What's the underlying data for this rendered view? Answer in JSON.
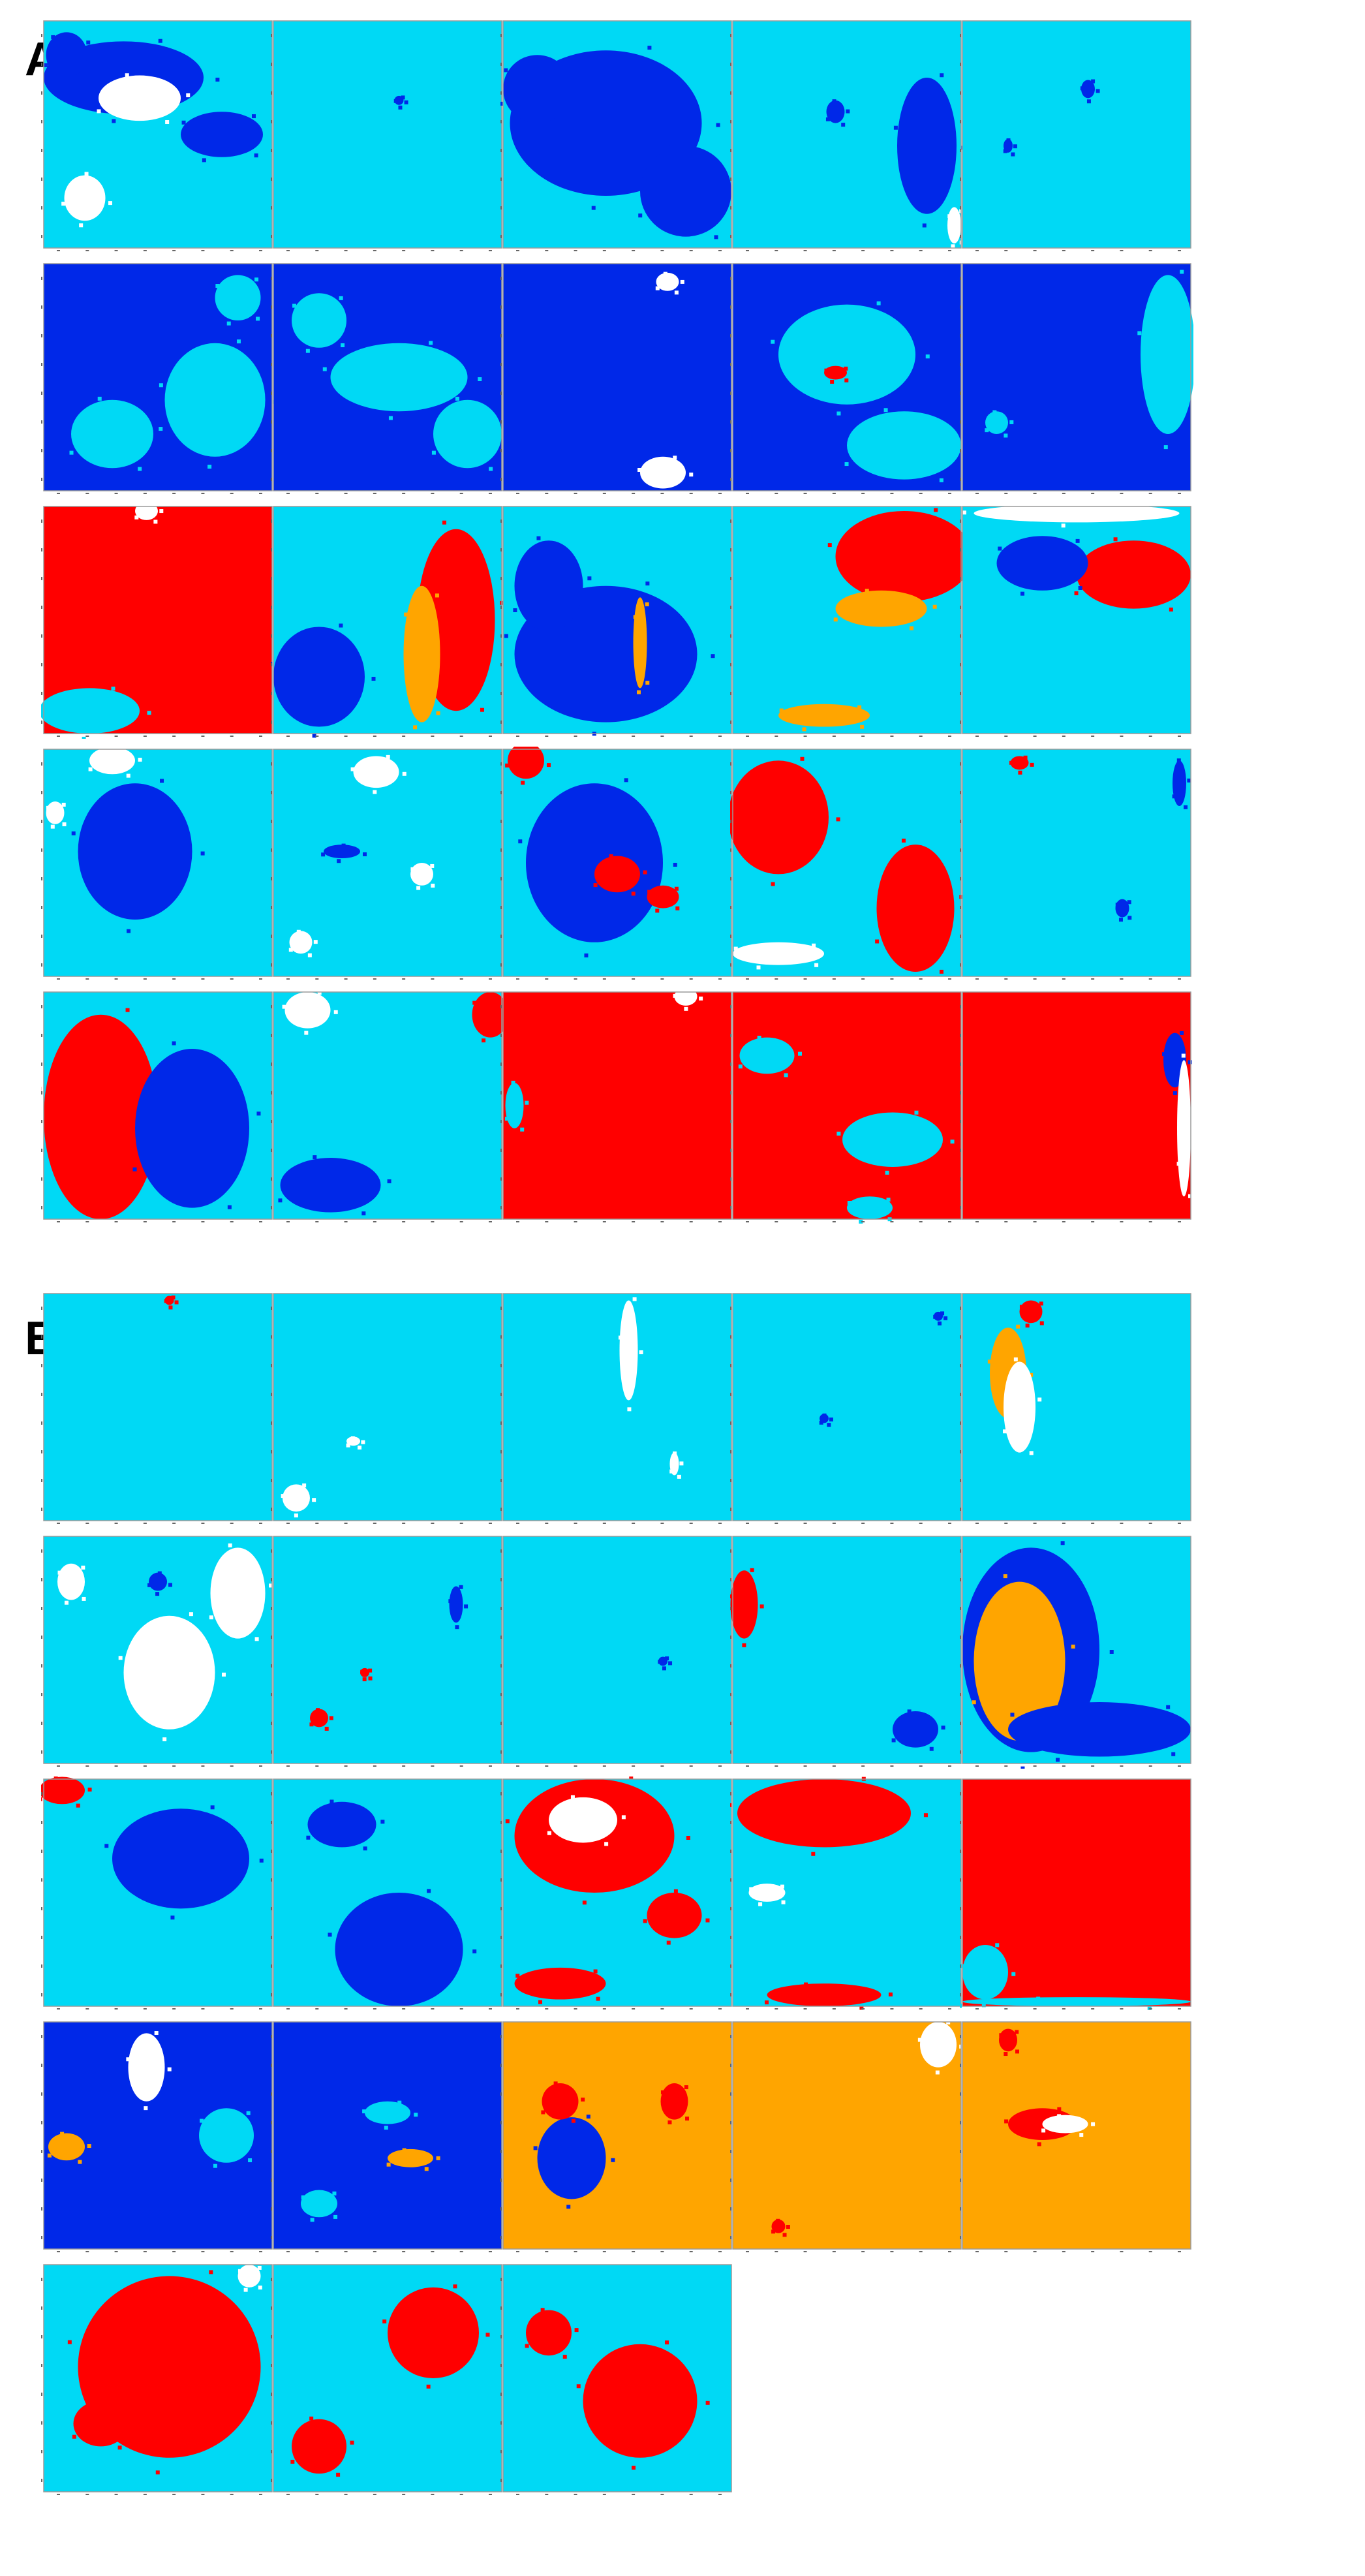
{
  "panels": [
    {
      "label": "A",
      "rows": 5,
      "cols": 5
    },
    {
      "label": "B",
      "rows": 5,
      "cols": 5,
      "count": 23
    }
  ],
  "colors": {
    "cyan": "#00D9F5",
    "blue": "#0028E8",
    "red": "#FF0000",
    "orange": "#FFA500",
    "white": "#FFFFFF",
    "frame": "#9A9A9A",
    "tick": "#666666"
  },
  "tiles": {
    "A": [
      {
        "bg": "cyan",
        "blobs": [
          [
            "blue",
            0.35,
            0.25,
            0.35,
            0.16
          ],
          [
            "white",
            0.42,
            0.34,
            0.18,
            0.1
          ],
          [
            "blue",
            0.78,
            0.5,
            0.18,
            0.1
          ],
          [
            "white",
            0.18,
            0.78,
            0.09,
            0.1
          ],
          [
            "blue",
            0.1,
            0.15,
            0.09,
            0.1
          ]
        ]
      },
      {
        "bg": "cyan",
        "blobs": [
          [
            "blue",
            0.55,
            0.35,
            0.02,
            0.02
          ]
        ]
      },
      {
        "bg": "cyan",
        "blobs": [
          [
            "blue",
            0.45,
            0.45,
            0.42,
            0.32
          ],
          [
            "blue",
            0.8,
            0.75,
            0.2,
            0.2
          ],
          [
            "blue",
            0.15,
            0.3,
            0.15,
            0.15
          ]
        ]
      },
      {
        "bg": "cyan",
        "blobs": [
          [
            "blue",
            0.85,
            0.55,
            0.13,
            0.3
          ],
          [
            "blue",
            0.45,
            0.4,
            0.04,
            0.05
          ],
          [
            "white",
            0.97,
            0.9,
            0.03,
            0.08
          ]
        ]
      },
      {
        "bg": "cyan",
        "blobs": [
          [
            "blue",
            0.55,
            0.3,
            0.03,
            0.04
          ],
          [
            "blue",
            0.2,
            0.55,
            0.02,
            0.03
          ]
        ]
      },
      {
        "bg": "blue",
        "blobs": [
          [
            "cyan",
            0.75,
            0.6,
            0.22,
            0.25
          ],
          [
            "cyan",
            0.3,
            0.75,
            0.18,
            0.15
          ],
          [
            "cyan",
            0.85,
            0.15,
            0.1,
            0.1
          ]
        ]
      },
      {
        "bg": "blue",
        "blobs": [
          [
            "cyan",
            0.55,
            0.5,
            0.3,
            0.15
          ],
          [
            "cyan",
            0.85,
            0.75,
            0.15,
            0.15
          ],
          [
            "cyan",
            0.2,
            0.25,
            0.12,
            0.12
          ]
        ]
      },
      {
        "bg": "blue",
        "blobs": [
          [
            "white",
            0.7,
            0.92,
            0.1,
            0.07
          ],
          [
            "white",
            0.72,
            0.08,
            0.05,
            0.04
          ]
        ]
      },
      {
        "bg": "blue",
        "blobs": [
          [
            "cyan",
            0.5,
            0.4,
            0.3,
            0.22
          ],
          [
            "cyan",
            0.75,
            0.8,
            0.25,
            0.15
          ],
          [
            "red",
            0.45,
            0.48,
            0.05,
            0.03
          ]
        ]
      },
      {
        "bg": "blue",
        "blobs": [
          [
            "cyan",
            0.9,
            0.4,
            0.12,
            0.35
          ],
          [
            "cyan",
            0.15,
            0.7,
            0.05,
            0.05
          ]
        ]
      },
      {
        "bg": "red",
        "blobs": [
          [
            "cyan",
            0.2,
            0.9,
            0.22,
            0.1
          ],
          [
            "white",
            0.45,
            0.02,
            0.05,
            0.04
          ]
        ]
      },
      {
        "bg": "cyan",
        "blobs": [
          [
            "blue",
            0.2,
            0.75,
            0.2,
            0.22
          ],
          [
            "red",
            0.8,
            0.5,
            0.17,
            0.4
          ],
          [
            "orange",
            0.65,
            0.65,
            0.08,
            0.3
          ]
        ]
      },
      {
        "bg": "cyan",
        "blobs": [
          [
            "blue",
            0.45,
            0.65,
            0.4,
            0.3
          ],
          [
            "blue",
            0.2,
            0.35,
            0.15,
            0.2
          ],
          [
            "orange",
            0.6,
            0.6,
            0.03,
            0.2
          ]
        ]
      },
      {
        "bg": "cyan",
        "blobs": [
          [
            "red",
            0.75,
            0.22,
            0.3,
            0.2
          ],
          [
            "orange",
            0.65,
            0.45,
            0.2,
            0.08
          ],
          [
            "orange",
            0.4,
            0.92,
            0.2,
            0.05
          ]
        ]
      },
      {
        "bg": "cyan",
        "blobs": [
          [
            "white",
            0.5,
            0.03,
            0.45,
            0.04
          ],
          [
            "red",
            0.75,
            0.3,
            0.25,
            0.15
          ],
          [
            "blue",
            0.35,
            0.25,
            0.2,
            0.12
          ]
        ]
      },
      {
        "bg": "cyan",
        "blobs": [
          [
            "blue",
            0.4,
            0.45,
            0.25,
            0.3
          ],
          [
            "white",
            0.3,
            0.05,
            0.1,
            0.06
          ],
          [
            "white",
            0.05,
            0.28,
            0.04,
            0.05
          ]
        ]
      },
      {
        "bg": "cyan",
        "blobs": [
          [
            "white",
            0.45,
            0.1,
            0.1,
            0.07
          ],
          [
            "white",
            0.12,
            0.85,
            0.05,
            0.05
          ],
          [
            "white",
            0.65,
            0.55,
            0.05,
            0.05
          ],
          [
            "blue",
            0.3,
            0.45,
            0.08,
            0.03
          ]
        ]
      },
      {
        "bg": "cyan",
        "blobs": [
          [
            "blue",
            0.4,
            0.5,
            0.3,
            0.35
          ],
          [
            "red",
            0.5,
            0.55,
            0.1,
            0.08
          ],
          [
            "red",
            0.7,
            0.65,
            0.07,
            0.05
          ],
          [
            "red",
            0.1,
            0.05,
            0.08,
            0.08
          ]
        ]
      },
      {
        "bg": "cyan",
        "blobs": [
          [
            "red",
            0.2,
            0.3,
            0.22,
            0.25
          ],
          [
            "red",
            0.8,
            0.7,
            0.17,
            0.28
          ],
          [
            "white",
            0.2,
            0.9,
            0.2,
            0.05
          ]
        ]
      },
      {
        "bg": "cyan",
        "blobs": [
          [
            "red",
            0.25,
            0.06,
            0.04,
            0.03
          ],
          [
            "blue",
            0.95,
            0.15,
            0.03,
            0.1
          ],
          [
            "blue",
            0.7,
            0.7,
            0.03,
            0.04
          ]
        ]
      },
      {
        "bg": "cyan",
        "blobs": [
          [
            "red",
            0.25,
            0.55,
            0.25,
            0.45
          ],
          [
            "blue",
            0.65,
            0.6,
            0.25,
            0.35
          ]
        ]
      },
      {
        "bg": "cyan",
        "blobs": [
          [
            "white",
            0.15,
            0.08,
            0.1,
            0.08
          ],
          [
            "blue",
            0.25,
            0.85,
            0.22,
            0.12
          ],
          [
            "red",
            0.95,
            0.1,
            0.08,
            0.1
          ]
        ]
      },
      {
        "bg": "red",
        "blobs": [
          [
            "white",
            0.8,
            0.02,
            0.05,
            0.04
          ],
          [
            "cyan",
            0.05,
            0.5,
            0.04,
            0.1
          ]
        ]
      },
      {
        "bg": "red",
        "blobs": [
          [
            "cyan",
            0.7,
            0.65,
            0.22,
            0.12
          ],
          [
            "cyan",
            0.15,
            0.28,
            0.12,
            0.08
          ],
          [
            "cyan",
            0.6,
            0.95,
            0.1,
            0.05
          ]
        ]
      },
      {
        "bg": "red",
        "blobs": [
          [
            "blue",
            0.93,
            0.3,
            0.05,
            0.12
          ],
          [
            "white",
            0.97,
            0.6,
            0.03,
            0.3
          ]
        ]
      }
    ],
    "B": [
      {
        "bg": "cyan",
        "blobs": [
          [
            "red",
            0.55,
            0.03,
            0.02,
            0.02
          ]
        ]
      },
      {
        "bg": "cyan",
        "blobs": [
          [
            "white",
            0.1,
            0.9,
            0.06,
            0.06
          ],
          [
            "white",
            0.35,
            0.65,
            0.03,
            0.02
          ]
        ]
      },
      {
        "bg": "cyan",
        "blobs": [
          [
            "white",
            0.55,
            0.25,
            0.04,
            0.22
          ],
          [
            "white",
            0.75,
            0.75,
            0.02,
            0.05
          ]
        ]
      },
      {
        "bg": "cyan",
        "blobs": [
          [
            "blue",
            0.9,
            0.1,
            0.02,
            0.02
          ],
          [
            "blue",
            0.4,
            0.55,
            0.02,
            0.02
          ]
        ]
      },
      {
        "bg": "cyan",
        "blobs": [
          [
            "orange",
            0.2,
            0.35,
            0.08,
            0.2
          ],
          [
            "white",
            0.25,
            0.5,
            0.07,
            0.2
          ],
          [
            "red",
            0.3,
            0.08,
            0.05,
            0.05
          ]
        ]
      },
      {
        "bg": "cyan",
        "blobs": [
          [
            "white",
            0.55,
            0.6,
            0.2,
            0.25
          ],
          [
            "white",
            0.85,
            0.25,
            0.12,
            0.2
          ],
          [
            "white",
            0.12,
            0.2,
            0.06,
            0.08
          ],
          [
            "blue",
            0.5,
            0.2,
            0.04,
            0.04
          ]
        ]
      },
      {
        "bg": "cyan",
        "blobs": [
          [
            "blue",
            0.8,
            0.3,
            0.03,
            0.08
          ],
          [
            "red",
            0.2,
            0.8,
            0.04,
            0.04
          ],
          [
            "red",
            0.4,
            0.6,
            0.02,
            0.02
          ]
        ]
      },
      {
        "bg": "cyan",
        "blobs": [
          [
            "blue",
            0.7,
            0.55,
            0.02,
            0.02
          ]
        ]
      },
      {
        "bg": "cyan",
        "blobs": [
          [
            "red",
            0.05,
            0.3,
            0.06,
            0.15
          ],
          [
            "blue",
            0.8,
            0.85,
            0.1,
            0.08
          ]
        ]
      },
      {
        "bg": "cyan",
        "blobs": [
          [
            "blue",
            0.3,
            0.5,
            0.3,
            0.45
          ],
          [
            "orange",
            0.25,
            0.55,
            0.2,
            0.35
          ],
          [
            "blue",
            0.6,
            0.85,
            0.4,
            0.12
          ]
        ]
      },
      {
        "bg": "cyan",
        "blobs": [
          [
            "blue",
            0.6,
            0.35,
            0.3,
            0.22
          ],
          [
            "red",
            0.08,
            0.05,
            0.1,
            0.06
          ]
        ]
      },
      {
        "bg": "cyan",
        "blobs": [
          [
            "blue",
            0.55,
            0.75,
            0.28,
            0.25
          ],
          [
            "blue",
            0.3,
            0.2,
            0.15,
            0.1
          ]
        ]
      },
      {
        "bg": "cyan",
        "blobs": [
          [
            "red",
            0.4,
            0.25,
            0.35,
            0.25
          ],
          [
            "white",
            0.35,
            0.18,
            0.15,
            0.1
          ],
          [
            "red",
            0.25,
            0.9,
            0.2,
            0.07
          ],
          [
            "red",
            0.75,
            0.6,
            0.12,
            0.1
          ]
        ]
      },
      {
        "bg": "cyan",
        "blobs": [
          [
            "red",
            0.4,
            0.15,
            0.38,
            0.15
          ],
          [
            "red",
            0.4,
            0.95,
            0.25,
            0.05
          ],
          [
            "white",
            0.15,
            0.5,
            0.08,
            0.04
          ]
        ]
      },
      {
        "bg": "red",
        "blobs": [
          [
            "cyan",
            0.1,
            0.85,
            0.1,
            0.12
          ],
          [
            "cyan",
            0.5,
            0.98,
            0.5,
            0.02
          ]
        ]
      },
      {
        "bg": "blue",
        "blobs": [
          [
            "white",
            0.45,
            0.2,
            0.08,
            0.15
          ],
          [
            "orange",
            0.1,
            0.55,
            0.08,
            0.06
          ],
          [
            "cyan",
            0.8,
            0.5,
            0.12,
            0.12
          ]
        ]
      },
      {
        "bg": "blue",
        "blobs": [
          [
            "cyan",
            0.5,
            0.4,
            0.1,
            0.05
          ],
          [
            "orange",
            0.6,
            0.6,
            0.1,
            0.04
          ],
          [
            "cyan",
            0.2,
            0.8,
            0.08,
            0.06
          ]
        ]
      },
      {
        "bg": "orange",
        "blobs": [
          [
            "blue",
            0.3,
            0.6,
            0.15,
            0.18
          ],
          [
            "red",
            0.25,
            0.35,
            0.08,
            0.08
          ],
          [
            "red",
            0.75,
            0.35,
            0.06,
            0.08
          ]
        ]
      },
      {
        "bg": "orange",
        "blobs": [
          [
            "white",
            0.9,
            0.1,
            0.08,
            0.1
          ],
          [
            "red",
            0.2,
            0.9,
            0.03,
            0.03
          ]
        ]
      },
      {
        "bg": "orange",
        "blobs": [
          [
            "red",
            0.35,
            0.45,
            0.15,
            0.07
          ],
          [
            "white",
            0.45,
            0.45,
            0.1,
            0.04
          ],
          [
            "red",
            0.2,
            0.08,
            0.04,
            0.05
          ]
        ]
      },
      {
        "bg": "cyan",
        "blobs": [
          [
            "red",
            0.55,
            0.45,
            0.4,
            0.4
          ],
          [
            "red",
            0.25,
            0.7,
            0.12,
            0.1
          ],
          [
            "white",
            0.9,
            0.05,
            0.05,
            0.05
          ]
        ]
      },
      {
        "bg": "cyan",
        "blobs": [
          [
            "red",
            0.7,
            0.3,
            0.2,
            0.2
          ],
          [
            "red",
            0.2,
            0.8,
            0.12,
            0.12
          ]
        ]
      },
      {
        "bg": "cyan",
        "blobs": [
          [
            "red",
            0.6,
            0.6,
            0.25,
            0.25
          ],
          [
            "red",
            0.2,
            0.3,
            0.1,
            0.1
          ]
        ]
      }
    ]
  }
}
